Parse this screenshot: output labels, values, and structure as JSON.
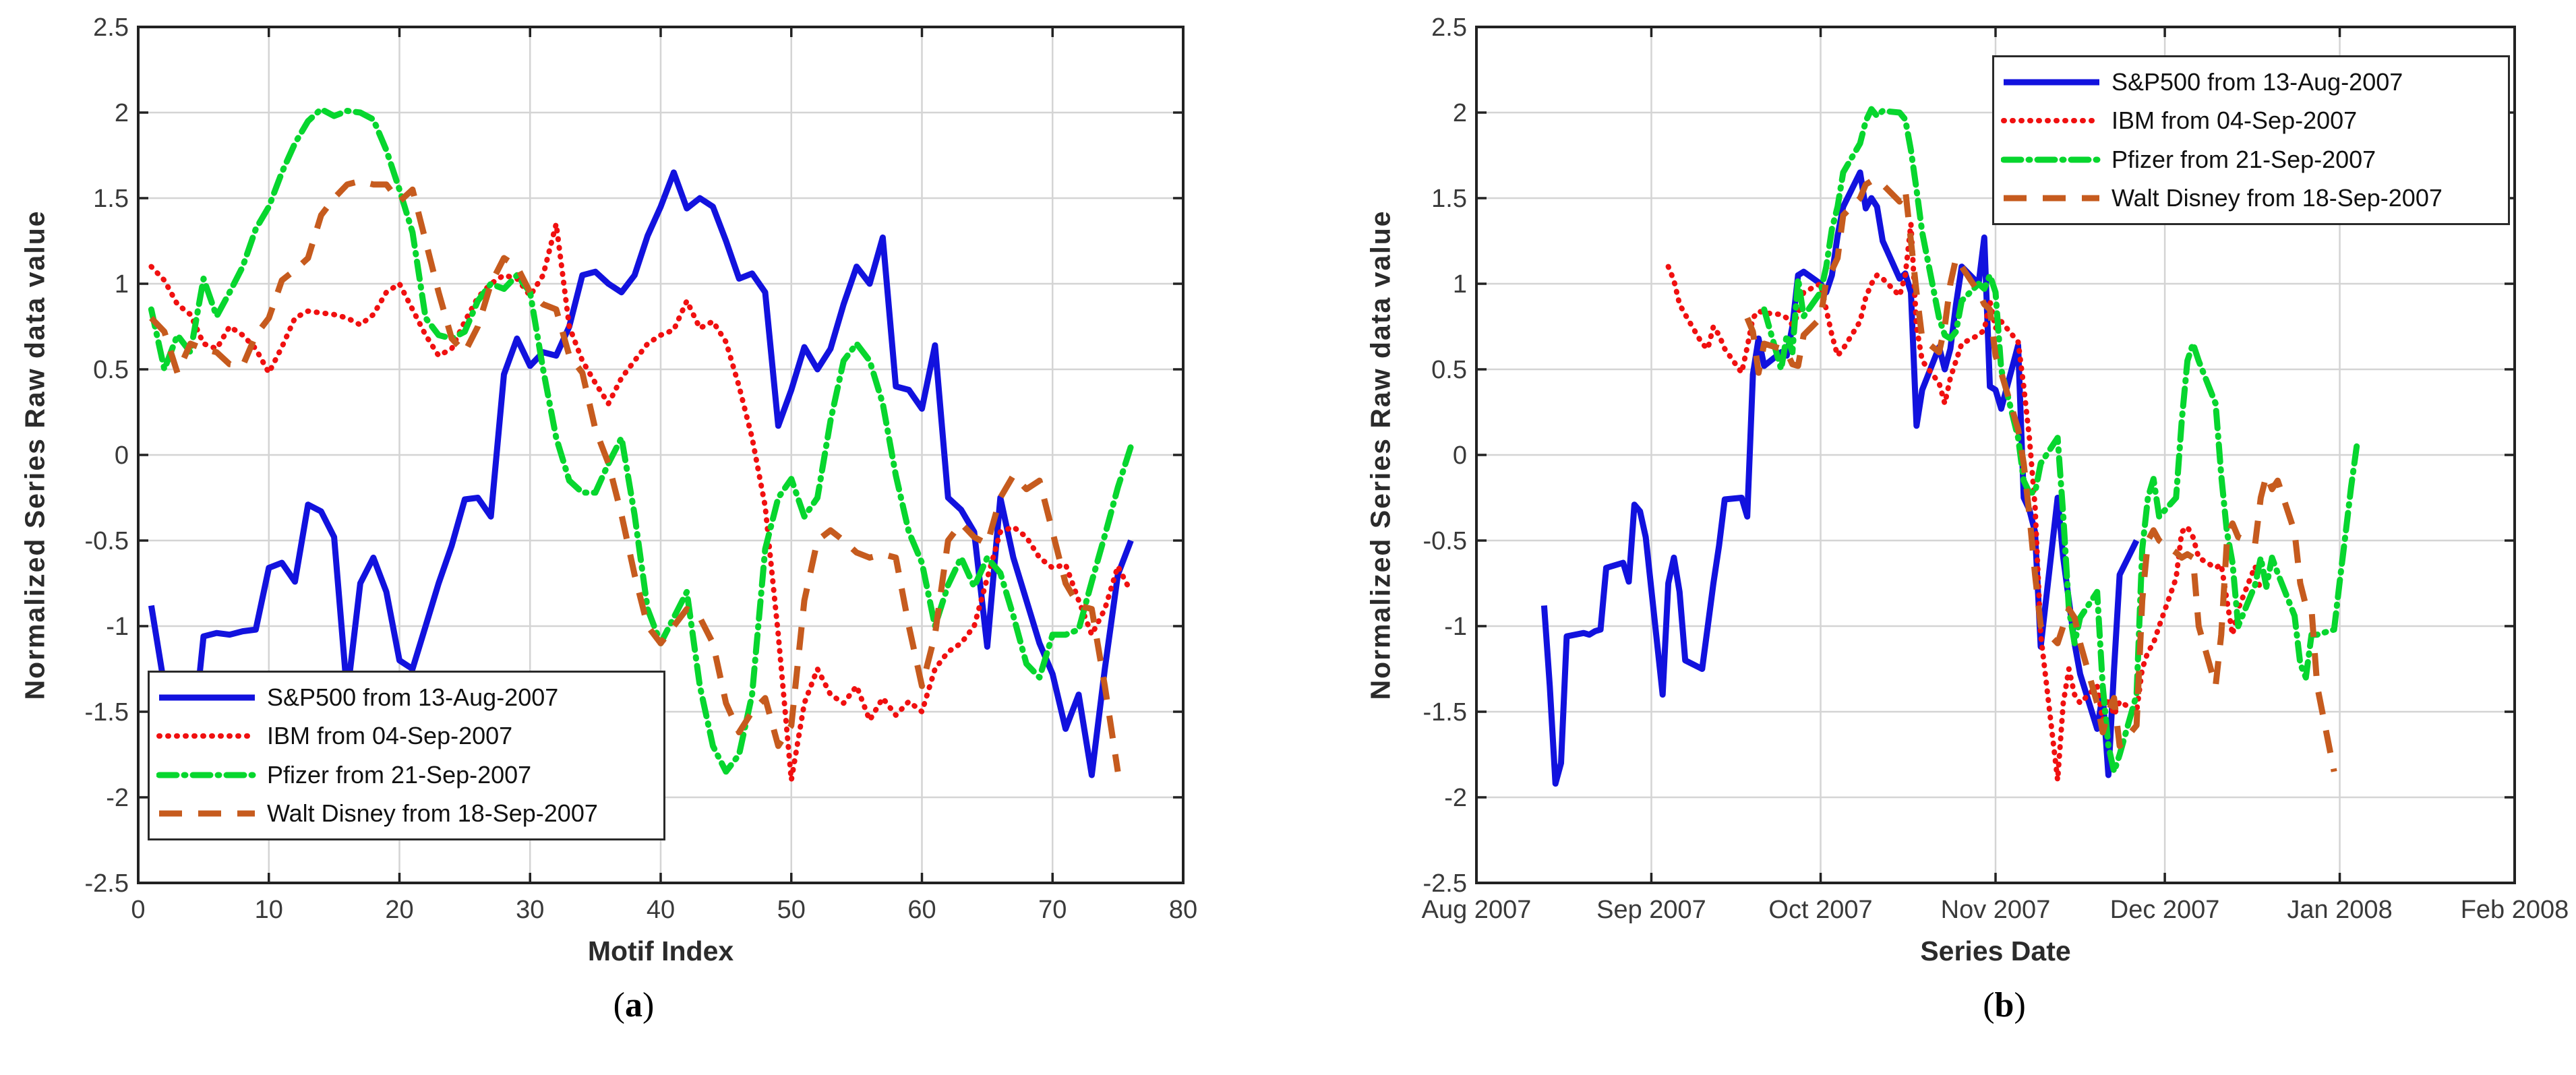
{
  "figure": {
    "background": "#ffffff",
    "caption_left_open": "(",
    "caption_left_letter": "a",
    "caption_left_close": ")",
    "caption_right_open": "(",
    "caption_right_letter": "b",
    "caption_right_close": ")"
  },
  "colors": {
    "sp500": "#1212DE",
    "ibm": "#F01010",
    "pfizer": "#07D62E",
    "walt_disney": "#C65B1E",
    "grid": "#D4D4D4",
    "axis": "#222222",
    "tick_text": "#3a3a3a",
    "label_text": "#2b2b2b"
  },
  "chart_data": [
    {
      "type": "line",
      "id": "a",
      "xlabel": "Motif Index",
      "ylabel": "Normalized Series Raw data value",
      "caption": "(a)",
      "xlim": [
        0,
        80
      ],
      "ylim": [
        -2.5,
        2.5
      ],
      "x_ticks": [
        0,
        10,
        20,
        30,
        40,
        50,
        60,
        70,
        80
      ],
      "y_ticks": [
        2.5,
        2,
        1.5,
        1,
        0.5,
        0,
        -0.5,
        -1,
        -1.5,
        -2,
        -2.5
      ],
      "y_tick_labels": [
        "2.5",
        "2",
        "1.5",
        "1",
        "0.5",
        "0",
        "-0.5",
        "-1",
        "-1.5",
        "-2",
        "-2.5"
      ],
      "grid": true,
      "legend_position": "bottom-left",
      "x_start_index": 1,
      "series": [
        {
          "name": "S&P500",
          "legend_label": "S&P500 from 13-Aug-2007",
          "color": "#1212DE",
          "line_style": "solid",
          "values": [
            -0.88,
            -1.35,
            -1.92,
            -1.8,
            -1.06,
            -1.04,
            -1.05,
            -1.03,
            -1.02,
            -0.66,
            -0.63,
            -0.74,
            -0.29,
            -0.33,
            -0.48,
            -1.4,
            -0.75,
            -0.6,
            -0.8,
            -1.2,
            -1.25,
            -1.0,
            -0.75,
            -0.53,
            -0.26,
            -0.25,
            -0.36,
            0.47,
            0.68,
            0.52,
            0.6,
            0.58,
            0.75,
            1.05,
            1.07,
            1.0,
            0.95,
            1.05,
            1.28,
            1.45,
            1.65,
            1.44,
            1.5,
            1.45,
            1.25,
            1.03,
            1.06,
            0.95,
            0.17,
            0.38,
            0.63,
            0.5,
            0.62,
            0.88,
            1.1,
            1.0,
            1.27,
            0.4,
            0.38,
            0.27,
            0.64,
            -0.25,
            -0.32,
            -0.45,
            -1.12,
            -0.25,
            -0.6,
            -0.85,
            -1.1,
            -1.28,
            -1.6,
            -1.4,
            -1.87,
            -1.25,
            -0.7,
            -0.5
          ]
        },
        {
          "name": "IBM",
          "legend_label": "IBM from 04-Sep-2007",
          "color": "#F01010",
          "line_style": "dotted",
          "values": [
            1.1,
            1.02,
            0.88,
            0.82,
            0.65,
            0.62,
            0.75,
            0.7,
            0.62,
            0.48,
            0.63,
            0.8,
            0.84,
            0.83,
            0.82,
            0.8,
            0.76,
            0.82,
            0.95,
            1.0,
            0.85,
            0.7,
            0.58,
            0.62,
            0.78,
            0.92,
            1.0,
            1.05,
            1.03,
            0.93,
            1.05,
            1.35,
            0.75,
            0.55,
            0.42,
            0.3,
            0.45,
            0.55,
            0.65,
            0.7,
            0.73,
            0.9,
            0.74,
            0.78,
            0.66,
            0.4,
            0.1,
            -0.3,
            -1.05,
            -1.9,
            -1.45,
            -1.25,
            -1.4,
            -1.45,
            -1.35,
            -1.55,
            -1.42,
            -1.52,
            -1.44,
            -1.5,
            -1.25,
            -1.15,
            -1.1,
            -1.0,
            -0.72,
            -0.45,
            -0.42,
            -0.48,
            -0.6,
            -0.66,
            -0.64,
            -0.85,
            -1.05,
            -0.9,
            -0.65,
            -0.8
          ]
        },
        {
          "name": "Pfizer",
          "legend_label": "Pfizer from 21-Sep-2007",
          "color": "#07D62E",
          "line_style": "dash-dot",
          "values": [
            0.85,
            0.5,
            0.7,
            0.6,
            1.03,
            0.81,
            0.95,
            1.1,
            1.32,
            1.45,
            1.65,
            1.82,
            1.95,
            2.02,
            1.98,
            2.01,
            2.0,
            1.96,
            1.78,
            1.55,
            1.3,
            0.8,
            0.7,
            0.68,
            0.72,
            0.9,
            1.0,
            0.97,
            1.05,
            0.95,
            0.5,
            0.1,
            -0.15,
            -0.22,
            -0.22,
            -0.05,
            0.1,
            -0.35,
            -0.9,
            -1.1,
            -0.95,
            -0.8,
            -1.35,
            -1.7,
            -1.85,
            -1.75,
            -1.4,
            -0.55,
            -0.25,
            -0.14,
            -0.36,
            -0.25,
            0.2,
            0.55,
            0.65,
            0.55,
            0.3,
            -0.12,
            -0.45,
            -0.63,
            -1.0,
            -0.76,
            -0.6,
            -0.77,
            -0.6,
            -0.69,
            -0.94,
            -1.22,
            -1.3,
            -1.05,
            -1.05,
            -1.02,
            -0.74,
            -0.47,
            -0.19,
            0.05
          ]
        },
        {
          "name": "Walt Disney",
          "legend_label": "Walt Disney from 18-Sep-2007",
          "color": "#C65B1E",
          "line_style": "dashed",
          "values": [
            0.8,
            0.72,
            0.48,
            0.65,
            0.62,
            0.6,
            0.53,
            0.52,
            0.7,
            0.8,
            1.02,
            1.08,
            1.15,
            1.4,
            1.5,
            1.58,
            1.6,
            1.58,
            1.58,
            1.48,
            1.55,
            1.25,
            0.95,
            0.68,
            0.6,
            0.75,
            1.0,
            1.15,
            1.1,
            0.95,
            0.88,
            0.85,
            0.58,
            0.48,
            0.15,
            -0.05,
            -0.35,
            -0.7,
            -1.0,
            -1.1,
            -1.0,
            -0.9,
            -0.95,
            -1.1,
            -1.45,
            -1.62,
            -1.5,
            -1.42,
            -1.7,
            -1.58,
            -0.85,
            -0.5,
            -0.44,
            -0.5,
            -0.57,
            -0.6,
            -0.58,
            -0.6,
            -1.0,
            -1.35,
            -1.05,
            -0.5,
            -0.4,
            -0.48,
            -0.52,
            -0.25,
            -0.12,
            -0.2,
            -0.15,
            -0.45,
            -0.75,
            -0.88,
            -0.9,
            -1.35,
            -1.85
          ]
        }
      ]
    },
    {
      "type": "line",
      "id": "b",
      "xlabel": "Series Date",
      "ylabel": "Normalized Series Raw data value",
      "caption": "(b)",
      "ylim": [
        -2.5,
        2.5
      ],
      "x_ticks": [
        "Aug 2007",
        "Sep 2007",
        "Oct 2007",
        "Nov 2007",
        "Dec 2007",
        "Jan 2008",
        "Feb 2008"
      ],
      "y_ticks": [
        2.5,
        2,
        1.5,
        1,
        0.5,
        0,
        -0.5,
        -1,
        -1.5,
        -2,
        -2.5
      ],
      "y_tick_labels": [
        "2.5",
        "2",
        "1.5",
        "1",
        "0.5",
        "0",
        "-0.5",
        "-1",
        "-1.5",
        "-2",
        "-2.5"
      ],
      "grid": true,
      "legend_position": "top-right",
      "x_axis_note": "calendar dates; one point per trading day starting at each series start date",
      "series": [
        {
          "name": "S&P500",
          "legend_label": "S&P500 from 13-Aug-2007",
          "color": "#1212DE",
          "line_style": "solid",
          "start_date": "2007-08-13",
          "values_same_as": "chart a"
        },
        {
          "name": "IBM",
          "legend_label": "IBM from 04-Sep-2007",
          "color": "#F01010",
          "line_style": "dotted",
          "start_date": "2007-09-04",
          "values_same_as": "chart a"
        },
        {
          "name": "Pfizer",
          "legend_label": "Pfizer from 21-Sep-2007",
          "color": "#07D62E",
          "line_style": "dash-dot",
          "start_date": "2007-09-21",
          "values_same_as": "chart a"
        },
        {
          "name": "Walt Disney",
          "legend_label": "Walt Disney from 18-Sep-2007",
          "color": "#C65B1E",
          "line_style": "dashed",
          "start_date": "2007-09-18",
          "values_same_as": "chart a"
        }
      ]
    }
  ]
}
